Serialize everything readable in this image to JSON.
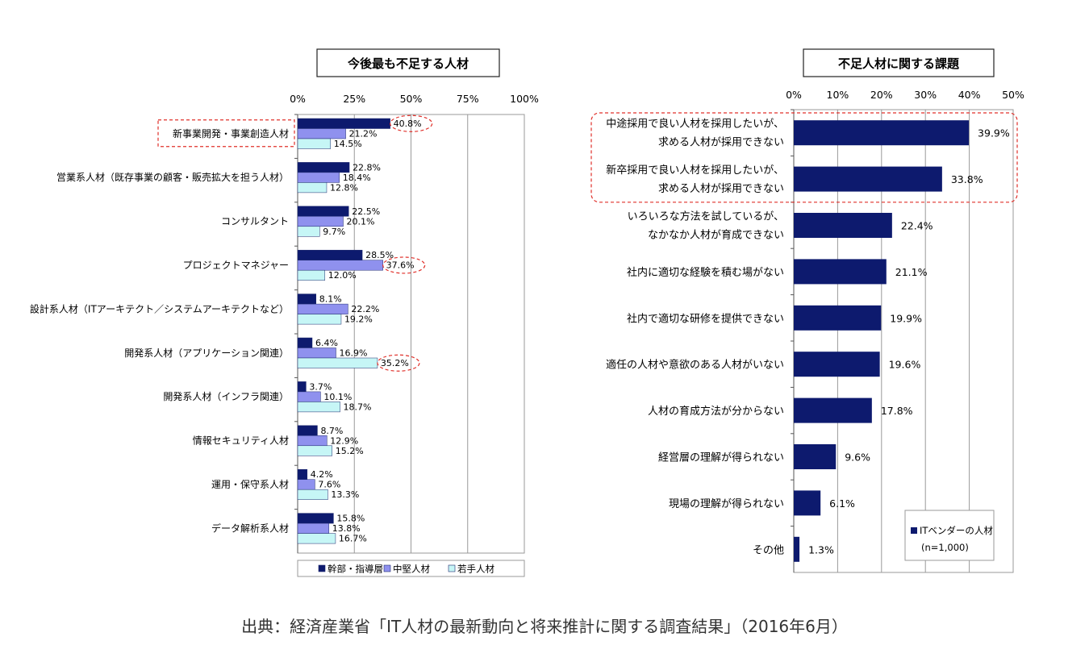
{
  "chart_data": [
    {
      "type": "bar",
      "orientation": "horizontal",
      "title": "今後最も不足する人材",
      "x_ticks": [
        "0%",
        "25%",
        "50%",
        "75%",
        "100%"
      ],
      "xlim": [
        0,
        100
      ],
      "categories": [
        "新事業開発・事業創造人材",
        "営業系人材（既存事業の顧客・販売拡大を担う人材）",
        "コンサルタント",
        "プロジェクトマネジャー",
        "設計系人材（ITアーキテクト／システムアーキテクトなど）",
        "開発系人材（アプリケーション関連）",
        "開発系人材（インフラ関連）",
        "情報セキュリティ人材",
        "運用・保守系人材",
        "データ解析系人材"
      ],
      "series": [
        {
          "name": "幹部・指導層",
          "color": "#0d1a6e",
          "values": [
            40.8,
            22.8,
            22.5,
            28.5,
            8.1,
            6.4,
            3.7,
            8.7,
            4.2,
            15.8
          ],
          "labels": [
            "40.8%",
            "22.8%",
            "22.5%",
            "28.5%",
            "8.1%",
            "6.4%",
            "3.7%",
            "8.7%",
            "4.2%",
            "15.8%"
          ]
        },
        {
          "name": "中堅人材",
          "color": "#8f91ee",
          "values": [
            21.2,
            18.4,
            20.1,
            37.6,
            22.2,
            16.9,
            10.1,
            12.9,
            7.6,
            13.8
          ],
          "labels": [
            "21.2%",
            "18.4%",
            "20.1%",
            "37.6%",
            "22.2%",
            "16.9%",
            "10.1%",
            "12.9%",
            "7.6%",
            "13.8%"
          ]
        },
        {
          "name": "若手人材",
          "color": "#c6f6f6",
          "values": [
            14.5,
            12.8,
            9.7,
            12.0,
            19.2,
            35.2,
            18.7,
            15.2,
            13.3,
            16.7
          ],
          "labels": [
            "14.5%",
            "12.8%",
            "9.7%",
            "12.0%",
            "19.2%",
            "35.2%",
            "18.7%",
            "15.2%",
            "13.3%",
            "16.7%"
          ]
        }
      ],
      "highlights": [
        {
          "category": 0,
          "series": 0
        },
        {
          "category": 3,
          "series": 1
        },
        {
          "category": 5,
          "series": 2
        }
      ],
      "highlight_category": 0,
      "legend": "bottom",
      "grid": true
    },
    {
      "type": "bar",
      "orientation": "horizontal",
      "title": "不足人材に関する課題",
      "x_ticks": [
        "0%",
        "10%",
        "20%",
        "30%",
        "40%",
        "50%"
      ],
      "xlim": [
        0,
        50
      ],
      "categories": [
        [
          "中途採用で良い人材を採用したいが、",
          "求める人材が採用できない"
        ],
        [
          "新卒採用で良い人材を採用したいが、",
          "求める人材が採用できない"
        ],
        [
          "いろいろな方法を試しているが、",
          "なかなか人材が育成できない"
        ],
        [
          "社内に適切な経験を積む場がない"
        ],
        [
          "社内で適切な研修を提供できない"
        ],
        [
          "適任の人材や意欲のある人材がいない"
        ],
        [
          "人材の育成方法が分からない"
        ],
        [
          "経営層の理解が得られない"
        ],
        [
          "現場の理解が得られない"
        ],
        [
          "その他"
        ]
      ],
      "series": [
        {
          "name": "ITベンダーの人材",
          "color": "#0d1a6e",
          "values": [
            39.9,
            33.8,
            22.4,
            21.1,
            19.9,
            19.6,
            17.8,
            9.6,
            6.1,
            1.3
          ],
          "labels": [
            "39.9%",
            "33.8%",
            "22.4%",
            "21.1%",
            "19.9%",
            "19.6%",
            "17.8%",
            "9.6%",
            "6.1%",
            "1.3%"
          ]
        }
      ],
      "legend_note": "(n=1,000)",
      "highlight_categories": [
        0,
        1
      ],
      "legend": "bottom-right",
      "grid": true
    }
  ],
  "source": "出典：経済産業省「IT人材の最新動向と将来推計に関する調査結果」（2016年6月）"
}
